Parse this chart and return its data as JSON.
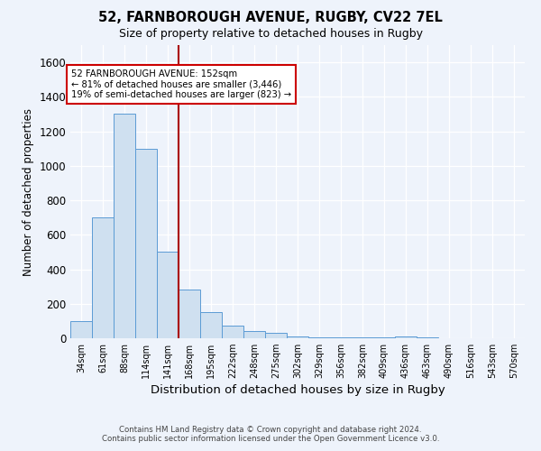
{
  "title1": "52, FARNBOROUGH AVENUE, RUGBY, CV22 7EL",
  "title2": "Size of property relative to detached houses in Rugby",
  "xlabel": "Distribution of detached houses by size in Rugby",
  "ylabel": "Number of detached properties",
  "footer1": "Contains HM Land Registry data © Crown copyright and database right 2024.",
  "footer2": "Contains public sector information licensed under the Open Government Licence v3.0.",
  "annotation_line1": "52 FARNBOROUGH AVENUE: 152sqm",
  "annotation_line2": "← 81% of detached houses are smaller (3,446)",
  "annotation_line3": "19% of semi-detached houses are larger (823) →",
  "bar_color": "#cfe0f0",
  "bar_edge_color": "#5b9bd5",
  "red_line_color": "#aa0000",
  "categories": [
    "34sqm",
    "61sqm",
    "88sqm",
    "114sqm",
    "141sqm",
    "168sqm",
    "195sqm",
    "222sqm",
    "248sqm",
    "275sqm",
    "302sqm",
    "329sqm",
    "356sqm",
    "382sqm",
    "409sqm",
    "436sqm",
    "463sqm",
    "490sqm",
    "516sqm",
    "543sqm",
    "570sqm"
  ],
  "values": [
    100,
    700,
    1300,
    1100,
    500,
    280,
    150,
    75,
    40,
    30,
    10,
    5,
    5,
    5,
    5,
    10,
    5,
    0,
    0,
    0,
    0
  ],
  "red_line_x": 4.5,
  "ylim": [
    0,
    1700
  ],
  "yticks": [
    0,
    200,
    400,
    600,
    800,
    1000,
    1200,
    1400,
    1600
  ],
  "background_color": "#eef3fb",
  "plot_bg_color": "#eef3fb",
  "grid_color": "#ffffff"
}
